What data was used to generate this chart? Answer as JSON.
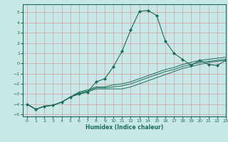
{
  "title": "",
  "xlabel": "Humidex (Indice chaleur)",
  "ylabel": "",
  "background_color": "#c8e8e8",
  "grid_color": "#d4a8a8",
  "line_color": "#1a6b5a",
  "xlim": [
    -0.5,
    23
  ],
  "ylim": [
    -5.2,
    5.8
  ],
  "xticks": [
    0,
    1,
    2,
    3,
    4,
    5,
    6,
    7,
    8,
    9,
    10,
    11,
    12,
    13,
    14,
    15,
    16,
    17,
    18,
    19,
    20,
    21,
    22,
    23
  ],
  "yticks": [
    -5,
    -4,
    -3,
    -2,
    -1,
    0,
    1,
    2,
    3,
    4,
    5
  ],
  "tick_fontsize": 4.5,
  "xlabel_fontsize": 5.5,
  "lines": [
    {
      "x": [
        0,
        1,
        2,
        3,
        4,
        5,
        6,
        7,
        8,
        9,
        10,
        11,
        12,
        13,
        14,
        15,
        16,
        17,
        18,
        19,
        20,
        21,
        22,
        23
      ],
      "y": [
        -4.0,
        -4.5,
        -4.2,
        -4.1,
        -3.8,
        -3.3,
        -3.0,
        -2.8,
        -1.8,
        -1.5,
        -0.3,
        1.2,
        3.3,
        5.1,
        5.2,
        4.7,
        2.2,
        1.0,
        0.4,
        -0.2,
        0.3,
        -0.1,
        -0.2,
        0.3
      ],
      "marker": "D",
      "markersize": 2.0
    },
    {
      "x": [
        0,
        1,
        2,
        3,
        4,
        5,
        6,
        7,
        8,
        9,
        10,
        11,
        12,
        13,
        14,
        15,
        16,
        17,
        18,
        19,
        20,
        21,
        22,
        23
      ],
      "y": [
        -4.0,
        -4.5,
        -4.2,
        -4.1,
        -3.8,
        -3.3,
        -3.0,
        -2.8,
        -2.5,
        -2.5,
        -2.5,
        -2.5,
        -2.3,
        -2.0,
        -1.7,
        -1.4,
        -1.1,
        -0.8,
        -0.5,
        -0.3,
        -0.1,
        0.1,
        0.2,
        0.3
      ],
      "marker": null,
      "markersize": 0
    },
    {
      "x": [
        0,
        1,
        2,
        3,
        4,
        5,
        6,
        7,
        8,
        9,
        10,
        11,
        12,
        13,
        14,
        15,
        16,
        17,
        18,
        19,
        20,
        21,
        22,
        23
      ],
      "y": [
        -4.0,
        -4.5,
        -4.2,
        -4.1,
        -3.8,
        -3.3,
        -2.9,
        -2.7,
        -2.4,
        -2.4,
        -2.3,
        -2.2,
        -2.0,
        -1.7,
        -1.4,
        -1.1,
        -0.8,
        -0.6,
        -0.3,
        -0.1,
        0.1,
        0.2,
        0.3,
        0.4
      ],
      "marker": null,
      "markersize": 0
    },
    {
      "x": [
        0,
        1,
        2,
        3,
        4,
        5,
        6,
        7,
        8,
        9,
        10,
        11,
        12,
        13,
        14,
        15,
        16,
        17,
        18,
        19,
        20,
        21,
        22,
        23
      ],
      "y": [
        -4.0,
        -4.5,
        -4.2,
        -4.1,
        -3.8,
        -3.3,
        -2.8,
        -2.6,
        -2.3,
        -2.3,
        -2.1,
        -2.0,
        -1.8,
        -1.5,
        -1.2,
        -0.9,
        -0.6,
        -0.4,
        -0.1,
        0.1,
        0.3,
        0.4,
        0.5,
        0.6
      ],
      "marker": null,
      "markersize": 0
    }
  ]
}
